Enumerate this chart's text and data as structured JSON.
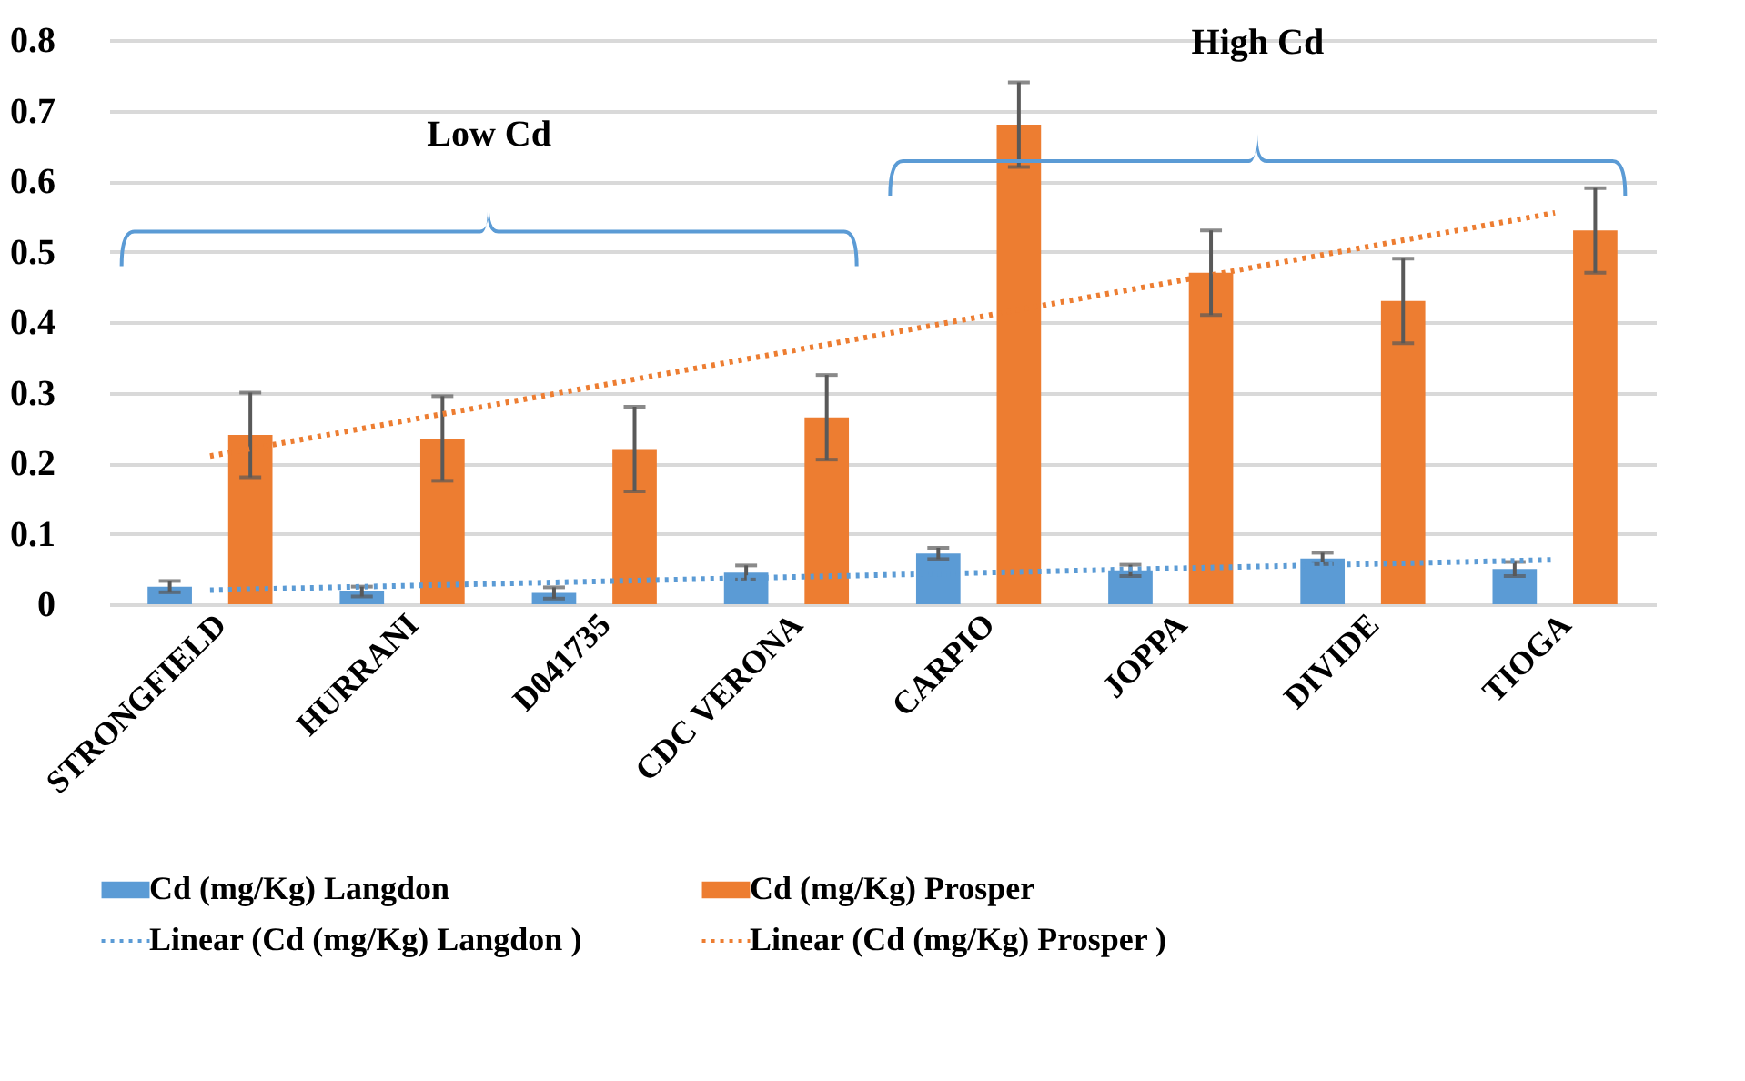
{
  "chart_data": {
    "type": "bar",
    "categories": [
      "STRONGFIELD",
      "HURRANI",
      "D041735",
      "CDC VERONA",
      "CARPIO",
      "JOPPA",
      "DIVIDE",
      "TIOGA"
    ],
    "series": [
      {
        "name": "Cd (mg/Kg) Langdon",
        "color": "#5b9bd5",
        "values": [
          0.025,
          0.018,
          0.016,
          0.045,
          0.072,
          0.048,
          0.065,
          0.05
        ],
        "errors": [
          0.008,
          0.007,
          0.008,
          0.01,
          0.008,
          0.008,
          0.008,
          0.01
        ]
      },
      {
        "name": "Cd (mg/Kg) Prosper",
        "color": "#ed7d31",
        "values": [
          0.24,
          0.235,
          0.22,
          0.265,
          0.68,
          0.47,
          0.43,
          0.53
        ],
        "errors": [
          0.06,
          0.06,
          0.06,
          0.06,
          0.06,
          0.06,
          0.06,
          0.06
        ]
      },
      {
        "name": "Linear (Cd (mg/Kg) Langdon )",
        "type": "line",
        "line_style": "dotted",
        "color": "#5b9bd5",
        "x": [
          "STRONGFIELD",
          "TIOGA"
        ],
        "values": [
          0.02,
          0.063
        ]
      },
      {
        "name": "Linear (Cd (mg/Kg) Prosper )",
        "type": "line",
        "line_style": "dotted",
        "color": "#ed7d31",
        "x": [
          "STRONGFIELD",
          "TIOGA"
        ],
        "values": [
          0.21,
          0.555
        ]
      }
    ],
    "annotations": [
      "Low Cd",
      "High Cd"
    ],
    "ylim": [
      0,
      0.8
    ],
    "yticks": [
      0,
      0.1,
      0.2,
      0.3,
      0.4,
      0.5,
      0.6,
      0.7,
      0.8
    ],
    "grid": "y",
    "legend": "bottom"
  }
}
